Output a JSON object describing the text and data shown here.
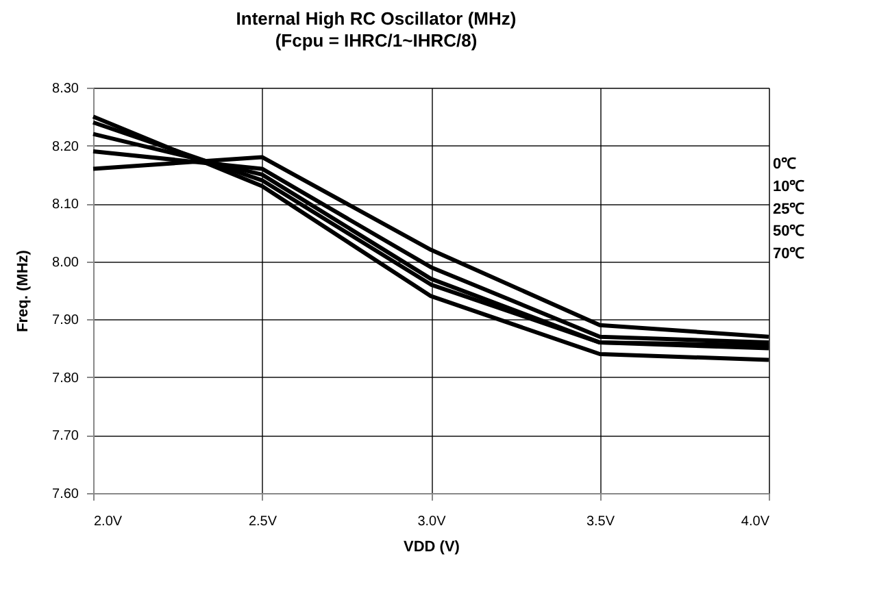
{
  "chart_data": {
    "type": "line",
    "title": "Internal High RC Oscillator (MHz)",
    "subtitle": "(Fcpu = IHRC/1~IHRC/8)",
    "xlabel": "VDD (V)",
    "ylabel": "Freq. (MHz)",
    "x": [
      2.0,
      2.5,
      3.0,
      3.5,
      4.0
    ],
    "series": [
      {
        "name": "0℃",
        "color": "#000000",
        "values": [
          8.16,
          8.18,
          8.02,
          7.89,
          7.87
        ]
      },
      {
        "name": "10℃",
        "color": "#000000",
        "values": [
          8.19,
          8.16,
          7.99,
          7.87,
          7.86
        ]
      },
      {
        "name": "25℃",
        "color": "#000000",
        "values": [
          8.22,
          8.15,
          7.97,
          7.86,
          7.855
        ]
      },
      {
        "name": "50℃",
        "color": "#000000",
        "values": [
          8.24,
          8.14,
          7.96,
          7.86,
          7.85
        ]
      },
      {
        "name": "70℃",
        "color": "#000000",
        "values": [
          8.25,
          8.13,
          7.94,
          7.84,
          7.83
        ]
      }
    ],
    "xlim": [
      2.0,
      4.0
    ],
    "xticks": [
      {
        "value": 2.0,
        "label": "2.0V"
      },
      {
        "value": 2.5,
        "label": "2.5V"
      },
      {
        "value": 3.0,
        "label": "3.0V"
      },
      {
        "value": 3.5,
        "label": "3.5V"
      },
      {
        "value": 4.0,
        "label": "4.0V"
      }
    ],
    "ylim": [
      7.6,
      8.3
    ],
    "yticks": [
      {
        "value": 7.6,
        "label": "7.60"
      },
      {
        "value": 7.7,
        "label": "7.70"
      },
      {
        "value": 7.8,
        "label": "7.80"
      },
      {
        "value": 7.9,
        "label": "7.90"
      },
      {
        "value": 8.0,
        "label": "8.00"
      },
      {
        "value": 8.1,
        "label": "8.10"
      },
      {
        "value": 8.2,
        "label": "8.20"
      },
      {
        "value": 8.3,
        "label": "8.30"
      }
    ],
    "grid": true,
    "marker": "none",
    "line_style": "solid",
    "legend": false
  }
}
